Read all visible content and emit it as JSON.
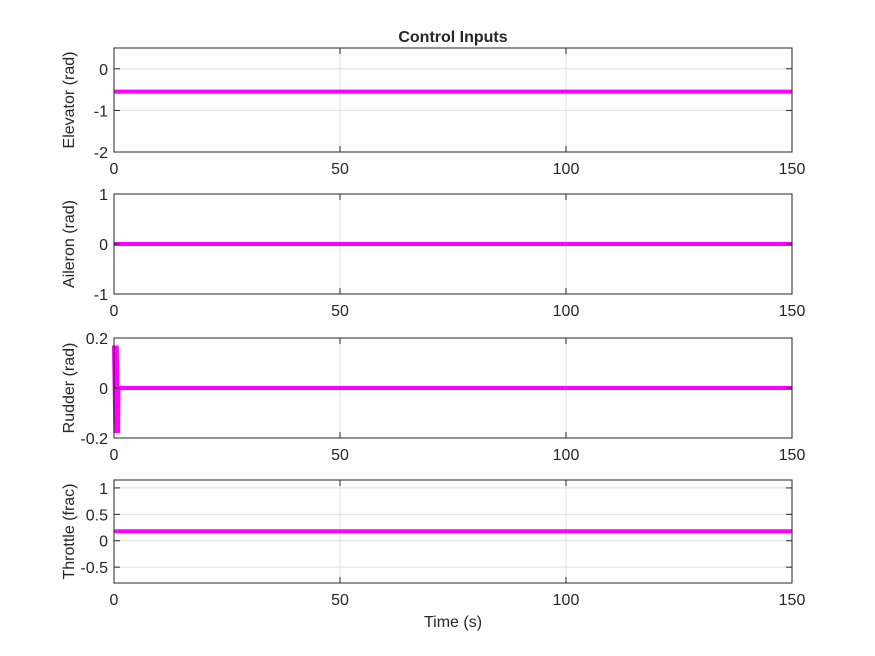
{
  "figure": {
    "title": "Control Inputs",
    "xlabel": "Time (s)"
  },
  "colors": {
    "trace": "#ff00ff",
    "grid": "#dfdfdf",
    "axes": "#262626"
  },
  "chart_data": [
    {
      "type": "line",
      "ylabel": "Elevator (rad)",
      "xlim": [
        0,
        150
      ],
      "ylim": [
        -2,
        0.5
      ],
      "xticks": [
        0,
        50,
        100,
        150
      ],
      "yticks": [
        -2,
        -1,
        0
      ],
      "grid": true,
      "series": [
        {
          "x": [
            0,
            150
          ],
          "y": [
            -0.55,
            -0.55
          ]
        }
      ]
    },
    {
      "type": "line",
      "ylabel": "Aileron (rad)",
      "xlim": [
        0,
        150
      ],
      "ylim": [
        -1,
        1
      ],
      "xticks": [
        0,
        50,
        100,
        150
      ],
      "yticks": [
        -1,
        0,
        1
      ],
      "grid": true,
      "series": [
        {
          "x": [
            0,
            150
          ],
          "y": [
            0,
            0
          ]
        }
      ]
    },
    {
      "type": "line",
      "ylabel": "Rudder (rad)",
      "xlim": [
        0,
        150
      ],
      "ylim": [
        -0.2,
        0.2
      ],
      "xticks": [
        0,
        50,
        100,
        150
      ],
      "yticks": [
        -0.2,
        0,
        0.2
      ],
      "grid": true,
      "series": [
        {
          "x": [
            0,
            0.3,
            0.6,
            0.9,
            1.0,
            150
          ],
          "y": [
            0.17,
            -0.18,
            0.17,
            -0.18,
            0,
            0
          ]
        }
      ]
    },
    {
      "type": "line",
      "ylabel": "Throttle (frac)",
      "xlim": [
        0,
        150
      ],
      "ylim": [
        -0.8,
        1.15
      ],
      "xticks": [
        0,
        50,
        100,
        150
      ],
      "yticks": [
        -0.5,
        0,
        0.5,
        1
      ],
      "grid": true,
      "series": [
        {
          "x": [
            0,
            150
          ],
          "y": [
            0.18,
            0.18
          ]
        }
      ]
    }
  ]
}
